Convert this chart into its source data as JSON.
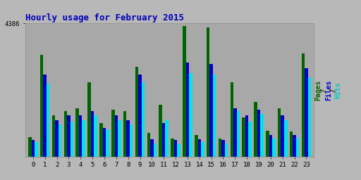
{
  "title": "Hourly usage for February 2015",
  "hours": [
    0,
    1,
    2,
    3,
    4,
    5,
    6,
    7,
    8,
    9,
    10,
    11,
    12,
    13,
    14,
    15,
    16,
    17,
    18,
    19,
    20,
    21,
    22,
    23
  ],
  "pages": [
    650,
    3350,
    1350,
    1500,
    1600,
    2450,
    1100,
    1550,
    1500,
    2950,
    780,
    1700,
    600,
    4300,
    700,
    4250,
    600,
    2450,
    1300,
    1800,
    850,
    1600,
    820,
    3400
  ],
  "files": [
    550,
    2700,
    1200,
    1350,
    1350,
    1500,
    950,
    1350,
    1200,
    2700,
    570,
    1100,
    550,
    3100,
    580,
    3050,
    540,
    1600,
    1350,
    1550,
    700,
    1350,
    700,
    2900
  ],
  "hits": [
    470,
    2400,
    1050,
    1150,
    1200,
    1350,
    900,
    1200,
    1050,
    2450,
    430,
    1200,
    400,
    2750,
    470,
    2700,
    430,
    1500,
    1150,
    1400,
    600,
    1200,
    620,
    2600
  ],
  "color_pages": "#006400",
  "color_files": "#0000cc",
  "color_hits": "#00e5e5",
  "title_color": "#0000bb",
  "ylabel_color_pages": "#006400",
  "ylabel_color_files": "#0000cc",
  "ylabel_color_hits": "#00cccc",
  "bg_color": "#b8b8b8",
  "plot_bg": "#a8a8a8",
  "ylim_max": 4386,
  "bar_width": 0.27
}
